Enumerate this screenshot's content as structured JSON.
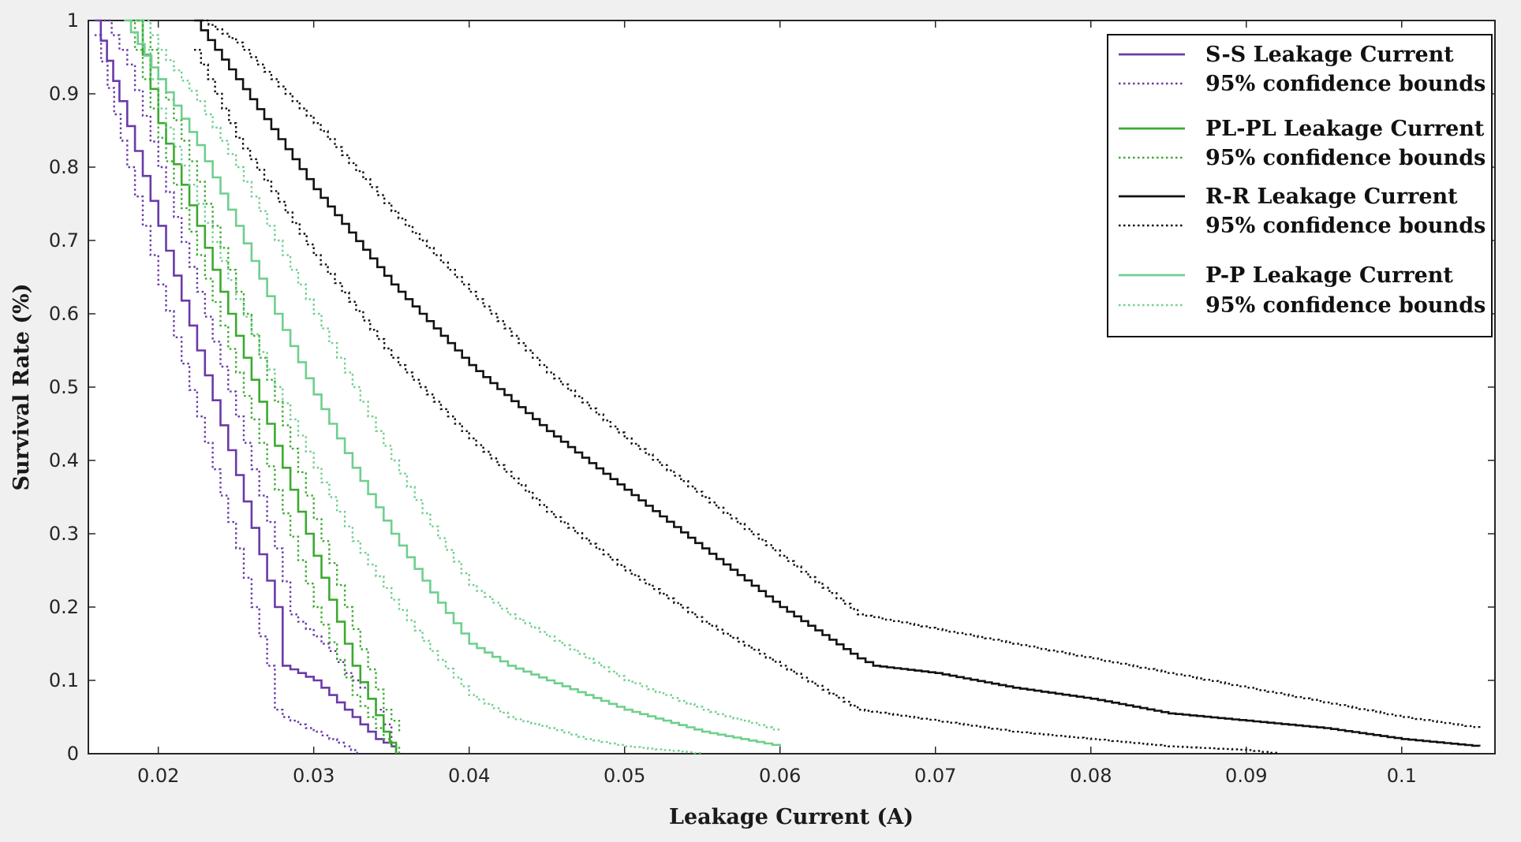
{
  "chart_data": {
    "type": "line",
    "title": "",
    "xlabel": "Leakage Current (A)",
    "ylabel": "Survival Rate (%)",
    "xlim": [
      0.0155,
      0.106
    ],
    "ylim": [
      0,
      1
    ],
    "x_ticks": [
      0.02,
      0.03,
      0.04,
      0.05,
      0.06,
      0.07,
      0.08,
      0.09,
      0.1
    ],
    "x_tick_labels": [
      "0.02",
      "0.03",
      "0.04",
      "0.05",
      "0.06",
      "0.07",
      "0.08",
      "0.09",
      "0.1"
    ],
    "y_ticks": [
      0,
      0.1,
      0.2,
      0.3,
      0.4,
      0.5,
      0.6,
      0.7,
      0.8,
      0.9,
      1
    ],
    "y_tick_labels": [
      "0",
      "0.1",
      "0.2",
      "0.3",
      "0.4",
      "0.5",
      "0.6",
      "0.7",
      "0.8",
      "0.9",
      "1"
    ],
    "grid": false,
    "legend_position": "top-right",
    "colors": {
      "ss": "#6a3aa8",
      "plpl": "#3caa30",
      "rr": "#111111",
      "pp": "#6fcf8e"
    },
    "legend": [
      {
        "label": "S-S Leakage Current",
        "style": "solid",
        "color": "#6a3aa8"
      },
      {
        "label": "95% confidence bounds",
        "style": "dotted",
        "color": "#6a3aa8"
      },
      {
        "label": "PL-PL Leakage Current",
        "style": "solid",
        "color": "#3caa30"
      },
      {
        "label": "95% confidence bounds",
        "style": "dotted",
        "color": "#3caa30"
      },
      {
        "label": "R-R Leakage Current",
        "style": "solid",
        "color": "#111111"
      },
      {
        "label": "95% confidence bounds",
        "style": "dotted",
        "color": "#111111"
      },
      {
        "label": "P-P Leakage Current",
        "style": "solid",
        "color": "#6fcf8e"
      },
      {
        "label": "95% confidence bounds",
        "style": "dotted",
        "color": "#6fcf8e"
      }
    ],
    "series": [
      {
        "name": "S-S Leakage Current",
        "color": "#6a3aa8",
        "style": "solid",
        "x": [
          0.0159,
          0.0175,
          0.02,
          0.0225,
          0.025,
          0.0275,
          0.028,
          0.029,
          0.03,
          0.031,
          0.032,
          0.033,
          0.034,
          0.035,
          0.0353
        ],
        "y": [
          1.0,
          0.89,
          0.72,
          0.55,
          0.38,
          0.2,
          0.12,
          0.11,
          0.1,
          0.08,
          0.06,
          0.04,
          0.02,
          0.01,
          0.0
        ]
      },
      {
        "name": "S-S 95% lower bound",
        "color": "#6a3aa8",
        "style": "dotted",
        "x": [
          0.0159,
          0.018,
          0.02,
          0.0225,
          0.025,
          0.027,
          0.0275,
          0.028,
          0.03,
          0.031,
          0.032,
          0.0328
        ],
        "y": [
          0.98,
          0.8,
          0.64,
          0.46,
          0.28,
          0.12,
          0.06,
          0.05,
          0.03,
          0.02,
          0.01,
          0.0
        ]
      },
      {
        "name": "S-S 95% upper bound",
        "color": "#6a3aa8",
        "style": "dotted",
        "x": [
          0.0165,
          0.018,
          0.02,
          0.0225,
          0.025,
          0.0275,
          0.0285,
          0.03,
          0.031,
          0.032,
          0.033,
          0.034,
          0.035
        ],
        "y": [
          1.0,
          0.94,
          0.8,
          0.63,
          0.46,
          0.28,
          0.19,
          0.16,
          0.14,
          0.11,
          0.09,
          0.06,
          0.02
        ]
      },
      {
        "name": "PL-PL Leakage Current",
        "color": "#3caa30",
        "style": "solid",
        "x": [
          0.0185,
          0.02,
          0.0225,
          0.025,
          0.0275,
          0.03,
          0.0325,
          0.0345,
          0.0353
        ],
        "y": [
          1.0,
          0.86,
          0.72,
          0.57,
          0.42,
          0.27,
          0.12,
          0.03,
          0.0
        ]
      },
      {
        "name": "PL-PL 95% lower bound",
        "color": "#3caa30",
        "style": "dotted",
        "x": [
          0.018,
          0.02,
          0.0225,
          0.025,
          0.0275,
          0.03,
          0.0325,
          0.0345,
          0.0355
        ],
        "y": [
          1.0,
          0.84,
          0.68,
          0.52,
          0.36,
          0.2,
          0.08,
          0.02,
          0.0
        ]
      },
      {
        "name": "PL-PL 95% upper bound",
        "color": "#3caa30",
        "style": "dotted",
        "x": [
          0.019,
          0.02,
          0.0225,
          0.025,
          0.0275,
          0.03,
          0.0325,
          0.0345,
          0.0355
        ],
        "y": [
          1.0,
          0.92,
          0.78,
          0.63,
          0.48,
          0.32,
          0.17,
          0.06,
          0.03
        ]
      },
      {
        "name": "R-R Leakage Current",
        "color": "#111111",
        "style": "solid",
        "x": [
          0.0223,
          0.025,
          0.03,
          0.035,
          0.04,
          0.045,
          0.05,
          0.055,
          0.06,
          0.065,
          0.066,
          0.07,
          0.075,
          0.08,
          0.085,
          0.09,
          0.095,
          0.1,
          0.105
        ],
        "y": [
          1.0,
          0.92,
          0.77,
          0.64,
          0.53,
          0.44,
          0.36,
          0.28,
          0.2,
          0.13,
          0.12,
          0.11,
          0.09,
          0.075,
          0.055,
          0.045,
          0.035,
          0.02,
          0.01
        ]
      },
      {
        "name": "R-R 95% lower bound",
        "color": "#111111",
        "style": "dotted",
        "x": [
          0.0223,
          0.025,
          0.03,
          0.035,
          0.04,
          0.045,
          0.05,
          0.055,
          0.06,
          0.065,
          0.07,
          0.075,
          0.08,
          0.085,
          0.09,
          0.092
        ],
        "y": [
          0.96,
          0.84,
          0.68,
          0.54,
          0.43,
          0.33,
          0.25,
          0.18,
          0.12,
          0.06,
          0.045,
          0.03,
          0.02,
          0.01,
          0.005,
          0.0
        ]
      },
      {
        "name": "R-R 95% upper bound",
        "color": "#111111",
        "style": "dotted",
        "x": [
          0.0228,
          0.025,
          0.03,
          0.035,
          0.04,
          0.045,
          0.05,
          0.055,
          0.06,
          0.065,
          0.07,
          0.075,
          0.08,
          0.085,
          0.09,
          0.095,
          0.1,
          0.105
        ],
        "y": [
          1.0,
          0.97,
          0.86,
          0.74,
          0.63,
          0.52,
          0.43,
          0.35,
          0.27,
          0.19,
          0.17,
          0.15,
          0.13,
          0.11,
          0.09,
          0.07,
          0.05,
          0.035
        ]
      },
      {
        "name": "P-P Leakage Current",
        "color": "#6fcf8e",
        "style": "solid",
        "x": [
          0.0178,
          0.02,
          0.0225,
          0.025,
          0.0275,
          0.03,
          0.0325,
          0.035,
          0.0375,
          0.04,
          0.0425,
          0.045,
          0.0475,
          0.05,
          0.0525,
          0.055,
          0.0575,
          0.06
        ],
        "y": [
          1.0,
          0.92,
          0.83,
          0.72,
          0.6,
          0.49,
          0.39,
          0.3,
          0.22,
          0.15,
          0.12,
          0.1,
          0.08,
          0.06,
          0.045,
          0.03,
          0.02,
          0.01
        ]
      },
      {
        "name": "P-P 95% lower bound",
        "color": "#6fcf8e",
        "style": "dotted",
        "x": [
          0.0185,
          0.02,
          0.0225,
          0.025,
          0.0275,
          0.03,
          0.0325,
          0.035,
          0.0375,
          0.04,
          0.0425,
          0.045,
          0.0475,
          0.05,
          0.0525,
          0.055
        ],
        "y": [
          1.0,
          0.88,
          0.75,
          0.62,
          0.5,
          0.39,
          0.29,
          0.21,
          0.14,
          0.08,
          0.05,
          0.035,
          0.02,
          0.01,
          0.005,
          0.0
        ]
      },
      {
        "name": "P-P 95% upper bound",
        "color": "#6fcf8e",
        "style": "dotted",
        "x": [
          0.019,
          0.02,
          0.0225,
          0.025,
          0.0275,
          0.03,
          0.0325,
          0.035,
          0.0375,
          0.04,
          0.0425,
          0.045,
          0.0475,
          0.05,
          0.0525,
          0.055,
          0.0575,
          0.06
        ],
        "y": [
          1.0,
          0.96,
          0.89,
          0.8,
          0.7,
          0.6,
          0.5,
          0.4,
          0.31,
          0.23,
          0.19,
          0.16,
          0.13,
          0.1,
          0.08,
          0.06,
          0.045,
          0.03
        ]
      }
    ]
  }
}
